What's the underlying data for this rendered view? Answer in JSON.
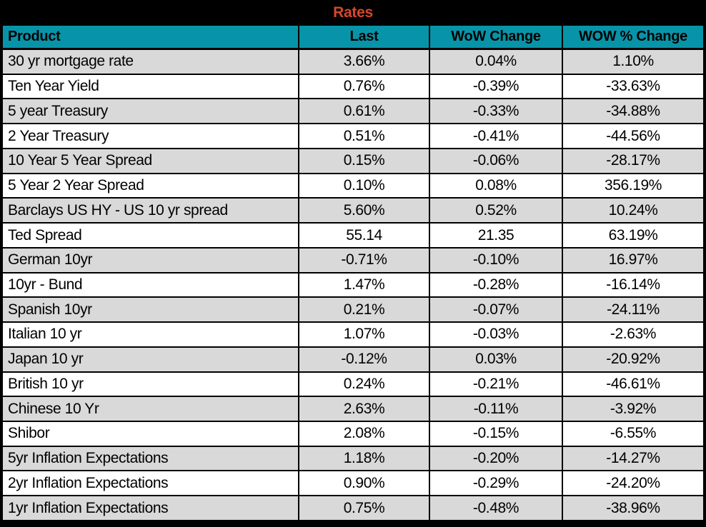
{
  "title": "Rates",
  "colors": {
    "title_bg": "#000000",
    "title_text": "#d8472b",
    "header_bg": "#0894a8",
    "header_text": "#000000",
    "row_alt_bg": "#d9d9d9",
    "row_bg": "#ffffff",
    "border": "#000000"
  },
  "chart_data": {
    "type": "table",
    "title": "Rates",
    "columns": [
      "Product",
      "Last",
      "WoW Change",
      "WOW % Change"
    ],
    "rows": [
      [
        "30 yr mortgage rate",
        "3.66%",
        "0.04%",
        "1.10%"
      ],
      [
        "Ten Year Yield",
        "0.76%",
        "-0.39%",
        "-33.63%"
      ],
      [
        "5 year Treasury",
        "0.61%",
        "-0.33%",
        "-34.88%"
      ],
      [
        "2 Year Treasury",
        "0.51%",
        "-0.41%",
        "-44.56%"
      ],
      [
        "10 Year 5 Year Spread",
        "0.15%",
        "-0.06%",
        "-28.17%"
      ],
      [
        "5 Year 2 Year Spread",
        "0.10%",
        "0.08%",
        "356.19%"
      ],
      [
        "Barclays US HY - US 10 yr spread",
        "5.60%",
        "0.52%",
        "10.24%"
      ],
      [
        "Ted Spread",
        "55.14",
        "21.35",
        "63.19%"
      ],
      [
        "German 10yr",
        "-0.71%",
        "-0.10%",
        "16.97%"
      ],
      [
        "10yr - Bund",
        "1.47%",
        "-0.28%",
        "-16.14%"
      ],
      [
        "Spanish 10yr",
        "0.21%",
        "-0.07%",
        "-24.11%"
      ],
      [
        "Italian 10 yr",
        "1.07%",
        "-0.03%",
        "-2.63%"
      ],
      [
        "Japan 10 yr",
        "-0.12%",
        "0.03%",
        "-20.92%"
      ],
      [
        "British 10 yr",
        "0.24%",
        "-0.21%",
        "-46.61%"
      ],
      [
        "Chinese 10 Yr",
        "2.63%",
        "-0.11%",
        "-3.92%"
      ],
      [
        "Shibor",
        "2.08%",
        "-0.15%",
        "-6.55%"
      ],
      [
        "5yr Inflation Expectations",
        "1.18%",
        "-0.20%",
        "-14.27%"
      ],
      [
        "2yr Inflation Expectations",
        "0.90%",
        "-0.29%",
        "-24.20%"
      ],
      [
        "1yr Inflation Expectations",
        "0.75%",
        "-0.48%",
        "-38.96%"
      ]
    ]
  }
}
